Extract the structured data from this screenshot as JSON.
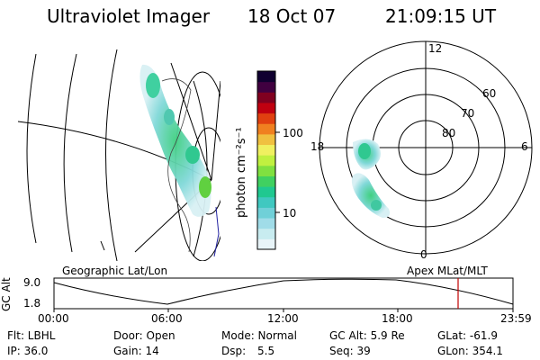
{
  "header": {
    "instrument": "Ultraviolet Imager",
    "date": "18 Oct 07",
    "time": "21:09:15 UT"
  },
  "colorbar": {
    "unit_label": "photon cm⁻²s⁻¹",
    "ticks": [
      "100",
      "10"
    ],
    "scale": "log",
    "colors": [
      "#e8f4f8",
      "#c8ecf0",
      "#a0dce8",
      "#70d0d8",
      "#40c8c0",
      "#20c890",
      "#40d060",
      "#80e040",
      "#c0f040",
      "#f0f060",
      "#f0c040",
      "#f08020",
      "#e04010",
      "#c00010",
      "#800020",
      "#400040",
      "#100030"
    ]
  },
  "geo_panel": {
    "label": "Geographic Lat/Lon"
  },
  "polar_panel": {
    "label": "Apex MLat/MLT",
    "mlt_labels": {
      "top": "12",
      "left": "18",
      "right": "6",
      "bottom": "0"
    },
    "lat_labels": [
      "60",
      "70",
      "80"
    ]
  },
  "altitude_plot": {
    "ylabel": "GC Alt",
    "yticks": [
      "9.0",
      "1.8"
    ],
    "xticks": [
      "00:00",
      "06:00",
      "12:00",
      "18:00",
      "23:59"
    ],
    "current_time_marker": "21:09",
    "marker_color": "#c00000"
  },
  "footer": {
    "flt": "Flt: LBHL",
    "ip": "IP: 36.0",
    "door": "Door: Open",
    "gain": "Gain: 14",
    "mode": "Mode: Normal",
    "dsp_label": "Dsp:",
    "dsp_value": "5.5",
    "gc_alt": "GC Alt: 5.9 Re",
    "seq": "Seq: 39",
    "glat": "GLat: -61.9",
    "glon": "GLon: 354.1"
  }
}
